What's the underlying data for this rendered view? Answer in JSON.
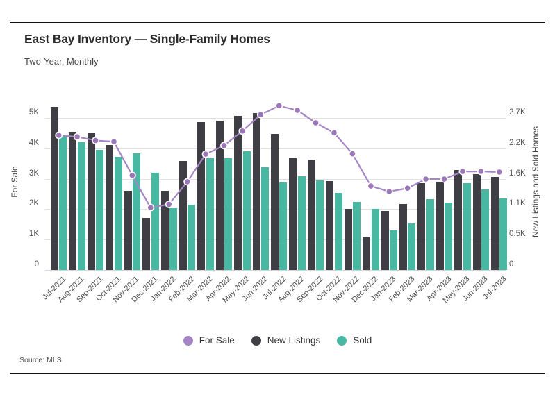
{
  "header": {
    "title": "East Bay Inventory — Single-Family Homes",
    "subtitle": "Two-Year, Monthly"
  },
  "source": "Source: MLS",
  "legend": [
    {
      "label": "For Sale",
      "color": "#a585c5"
    },
    {
      "label": "New Listings",
      "color": "#3e3e44"
    },
    {
      "label": "Sold",
      "color": "#49b8a3"
    }
  ],
  "chart_data": {
    "type": "bar",
    "subtype": "grouped-bars-with-line-overlay",
    "categories": [
      "Jul-2021",
      "Aug-2021",
      "Sep-2021",
      "Oct-2021",
      "Nov-2021",
      "Dec-2021",
      "Jan-2022",
      "Feb-2022",
      "Mar-2022",
      "Apr-2022",
      "May-2022",
      "Jun-2022",
      "Jul-2022",
      "Aug-2022",
      "Sep-2022",
      "Oct-2022",
      "Nov-2022",
      "Dec-2022",
      "Jan-2023",
      "Feb-2023",
      "Mar-2023",
      "Apr-2023",
      "May-2023",
      "Jun-2023",
      "Jul-2023"
    ],
    "series": [
      {
        "name": "For Sale",
        "type": "line",
        "axis": "left",
        "color": "#a585c5",
        "point_color": "#9b77ba",
        "values": [
          4430,
          4380,
          4260,
          4220,
          3110,
          2050,
          2160,
          2900,
          3810,
          4090,
          4570,
          5110,
          5400,
          5250,
          4840,
          4510,
          3820,
          2760,
          2580,
          2690,
          2990,
          2990,
          3240,
          3240,
          3220
        ]
      },
      {
        "name": "New Listings",
        "type": "bar",
        "axis": "right",
        "color": "#3e3e44",
        "values": [
          2900,
          2450,
          2430,
          2220,
          1400,
          930,
          1410,
          1930,
          2620,
          2650,
          2740,
          2790,
          2420,
          1990,
          1960,
          1580,
          1080,
          590,
          1050,
          1170,
          1540,
          1570,
          1770,
          1700,
          1650
        ]
      },
      {
        "name": "Sold",
        "type": "bar",
        "axis": "right",
        "color": "#49b8a3",
        "values": [
          2380,
          2270,
          2130,
          2010,
          2070,
          1720,
          1100,
          1160,
          1990,
          1990,
          2110,
          1830,
          1550,
          1660,
          1590,
          1370,
          1210,
          1080,
          700,
          830,
          1260,
          1190,
          1540,
          1430,
          1270
        ]
      }
    ],
    "left_axis": {
      "label": "For Sale",
      "range": [
        0,
        5000
      ],
      "ticks": [
        "0",
        "1K",
        "2K",
        "3K",
        "4K",
        "5K"
      ]
    },
    "right_axis": {
      "label": "New Listings and Sold Homes",
      "range": [
        0,
        2700
      ],
      "ticks": [
        "0",
        "0.5K",
        "1.1K",
        "1.6K",
        "2.2K",
        "2.7K"
      ]
    },
    "grid": "horizontal",
    "legend_position": "bottom-center"
  }
}
